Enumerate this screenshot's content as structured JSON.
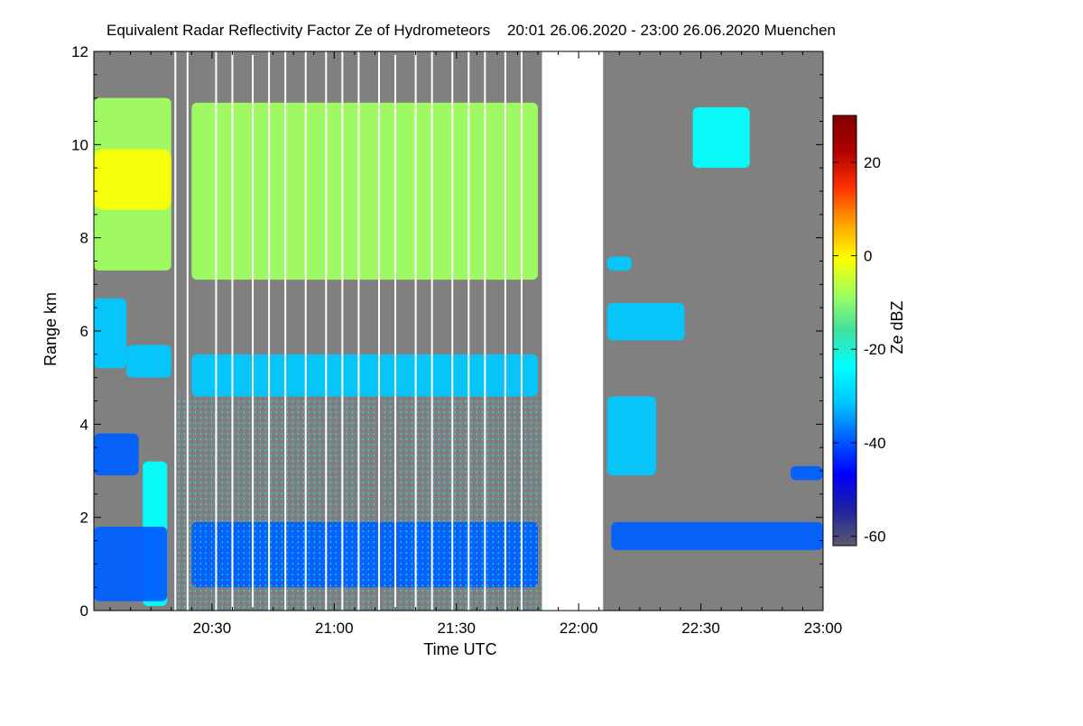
{
  "chart_data": {
    "type": "heatmap",
    "title": "Equivalent Radar Reflectivity Factor Ze of Hydrometeors    20:01 26.06.2020 - 23:00 26.06.2020 Muenchen",
    "xlabel": "Time UTC",
    "ylabel": "Range km",
    "x_range_minutes_utc": [
      1201,
      1380
    ],
    "x_ticks": [
      {
        "minute": 1230,
        "label": "20:30"
      },
      {
        "minute": 1260,
        "label": "21:00"
      },
      {
        "minute": 1290,
        "label": "21:30"
      },
      {
        "minute": 1320,
        "label": "22:00"
      },
      {
        "minute": 1350,
        "label": "22:30"
      },
      {
        "minute": 1380,
        "label": "23:00"
      }
    ],
    "y_range_km": [
      0,
      12
    ],
    "y_ticks": [
      {
        "value": 0,
        "label": "0"
      },
      {
        "value": 2,
        "label": "2"
      },
      {
        "value": 4,
        "label": "4"
      },
      {
        "value": 6,
        "label": "6"
      },
      {
        "value": 8,
        "label": "8"
      },
      {
        "value": 10,
        "label": "10"
      },
      {
        "value": 12,
        "label": "12"
      }
    ],
    "background_color": "#808080",
    "no_data_periods_minutes": [
      [
        1311,
        1326
      ]
    ],
    "scan_gap_minutes": [
      1221,
      1224,
      1231,
      1235,
      1240,
      1244,
      1248,
      1253,
      1258,
      1262,
      1266,
      1271,
      1275,
      1280,
      1284,
      1289,
      1293,
      1297,
      1302,
      1306
    ],
    "colorbar": {
      "label": "Ze dBZ",
      "range": [
        -62,
        30
      ],
      "ticks": [
        {
          "value": 20,
          "label": "20"
        },
        {
          "value": 0,
          "label": "0"
        },
        {
          "value": -20,
          "label": "-20"
        },
        {
          "value": -40,
          "label": "-40"
        },
        {
          "value": -60,
          "label": "-60"
        }
      ],
      "colors": [
        "#5a5a6e",
        "#2020a0",
        "#0000ff",
        "#0060ff",
        "#00c8ff",
        "#00ffff",
        "#40e0a0",
        "#a0ff60",
        "#ffff00",
        "#ffa000",
        "#ff3000",
        "#b00000",
        "#800000"
      ]
    },
    "regions": [
      {
        "t0": 1201,
        "t1": 1220,
        "r0": 7.3,
        "r1": 11.0,
        "ze": -12,
        "core_ze": 3,
        "core_r": [
          8.6,
          9.9
        ]
      },
      {
        "t0": 1201,
        "t1": 1209,
        "r0": 5.2,
        "r1": 6.7,
        "ze": -28
      },
      {
        "t0": 1209,
        "t1": 1220,
        "r0": 5.0,
        "r1": 5.7,
        "ze": -35
      },
      {
        "t0": 1201,
        "t1": 1212,
        "r0": 2.9,
        "r1": 3.8,
        "ze": -42
      },
      {
        "t0": 1213,
        "t1": 1219,
        "r0": 0.1,
        "r1": 3.2,
        "ze": -24
      },
      {
        "t0": 1201,
        "t1": 1219,
        "r0": 0.2,
        "r1": 1.8,
        "ze": -40
      },
      {
        "t0": 1225,
        "t1": 1310,
        "r0": 7.1,
        "r1": 10.9,
        "ze": -12,
        "scan": true
      },
      {
        "t0": 1225,
        "t1": 1310,
        "r0": 4.6,
        "r1": 5.5,
        "ze": -30,
        "scan": true
      },
      {
        "t0": 1225,
        "t1": 1310,
        "r0": 0.5,
        "r1": 1.9,
        "ze": -40,
        "scan": true
      },
      {
        "t0": 1327,
        "t1": 1333,
        "r0": 7.3,
        "r1": 7.6,
        "ze": -30
      },
      {
        "t0": 1327,
        "t1": 1346,
        "r0": 5.8,
        "r1": 6.6,
        "ze": -28
      },
      {
        "t0": 1327,
        "t1": 1339,
        "r0": 2.9,
        "r1": 4.6,
        "ze": -34
      },
      {
        "t0": 1348,
        "t1": 1362,
        "r0": 9.5,
        "r1": 10.8,
        "ze": -25
      },
      {
        "t0": 1328,
        "t1": 1380,
        "r0": 1.3,
        "r1": 1.9,
        "ze": -38
      },
      {
        "t0": 1372,
        "t1": 1380,
        "r0": 2.8,
        "r1": 3.1,
        "ze": -40
      }
    ]
  }
}
